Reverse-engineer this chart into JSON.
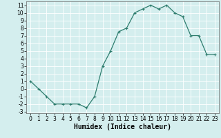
{
  "x": [
    0,
    1,
    2,
    3,
    4,
    5,
    6,
    7,
    8,
    9,
    10,
    11,
    12,
    13,
    14,
    15,
    16,
    17,
    18,
    19,
    20,
    21,
    22,
    23
  ],
  "y": [
    1,
    0,
    -1,
    -2,
    -2,
    -2,
    -2,
    -2.5,
    -1,
    3,
    5,
    7.5,
    8,
    10,
    10.5,
    11,
    10.5,
    11,
    10,
    9.5,
    7,
    7,
    4.5,
    4.5
  ],
  "line_color": "#2e7d6e",
  "marker": "+",
  "bg_color": "#d4eeee",
  "grid_color": "#ffffff",
  "xlabel": "Humidex (Indice chaleur)",
  "xlabel_fontsize": 7,
  "tick_fontsize": 5.5,
  "xlim": [
    -0.5,
    23.5
  ],
  "ylim": [
    -3.2,
    11.5
  ],
  "yticks": [
    -3,
    -2,
    -1,
    0,
    1,
    2,
    3,
    4,
    5,
    6,
    7,
    8,
    9,
    10,
    11
  ],
  "xticks": [
    0,
    1,
    2,
    3,
    4,
    5,
    6,
    7,
    8,
    9,
    10,
    11,
    12,
    13,
    14,
    15,
    16,
    17,
    18,
    19,
    20,
    21,
    22,
    23
  ]
}
